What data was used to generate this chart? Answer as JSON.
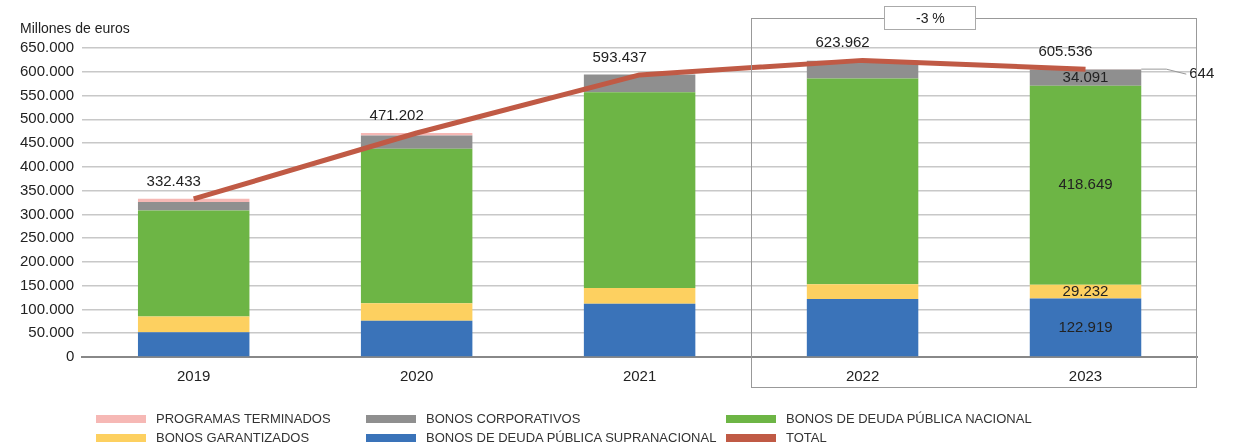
{
  "chart_data": {
    "type": "bar",
    "stacked": true,
    "ylabel": "Millones de euros",
    "categories": [
      "2019",
      "2020",
      "2021",
      "2022",
      "2023"
    ],
    "series": [
      {
        "name": "BONOS DE DEUDA PÚBLICA SUPRANACIONAL",
        "color": "#3a73b9",
        "values": [
          52000,
          76000,
          112000,
          122000,
          122919
        ],
        "value_labels": [
          null,
          null,
          null,
          null,
          "122.919"
        ]
      },
      {
        "name": "BONOS GARANTIZADOS",
        "color": "#fdd060",
        "values": [
          33000,
          37000,
          33000,
          31000,
          29232
        ],
        "value_labels": [
          null,
          null,
          null,
          null,
          "29.232"
        ]
      },
      {
        "name": "BONOS DE DEUDA PÚBLICA NACIONAL",
        "color": "#6db545",
        "values": [
          223000,
          325000,
          412000,
          433000,
          418649
        ],
        "value_labels": [
          null,
          null,
          null,
          null,
          "418.649"
        ]
      },
      {
        "name": "BONOS CORPORATIVOS",
        "color": "#8f8f8f",
        "values": [
          18000,
          28000,
          37000,
          37000,
          34091
        ],
        "value_labels": [
          null,
          null,
          null,
          null,
          "34.091"
        ]
      },
      {
        "name": "PROGRAMAS TERMINADOS",
        "color": "#f6b8b5",
        "values": [
          7000,
          5000,
          null,
          null,
          644
        ],
        "value_labels": [
          null,
          null,
          null,
          null,
          "644"
        ]
      },
      {
        "name": "TOTAL",
        "type": "line",
        "color": "#c05a45",
        "marker": "none",
        "values": [
          332433,
          471202,
          593437,
          623962,
          605536
        ],
        "value_labels": [
          "332.433",
          "471.202",
          "593.437",
          "623.962",
          "605.536"
        ]
      }
    ],
    "ylim": [
      0,
      650000
    ],
    "yticks": [
      {
        "value": 0,
        "label": "0"
      },
      {
        "value": 50000,
        "label": "50.000"
      },
      {
        "value": 100000,
        "label": "100.000"
      },
      {
        "value": 150000,
        "label": "150.000"
      },
      {
        "value": 200000,
        "label": "200.000"
      },
      {
        "value": 250000,
        "label": "250.000"
      },
      {
        "value": 300000,
        "label": "300.000"
      },
      {
        "value": 350000,
        "label": "350.000"
      },
      {
        "value": 400000,
        "label": "400.000"
      },
      {
        "value": 450000,
        "label": "450.000"
      },
      {
        "value": 500000,
        "label": "500.000"
      },
      {
        "value": 550000,
        "label": "550.000"
      },
      {
        "value": 600000,
        "label": "600.000"
      },
      {
        "value": 650000,
        "label": "650.000"
      }
    ],
    "grid": "y",
    "legend": "bottom",
    "annotations": [
      "-3 %"
    ]
  }
}
